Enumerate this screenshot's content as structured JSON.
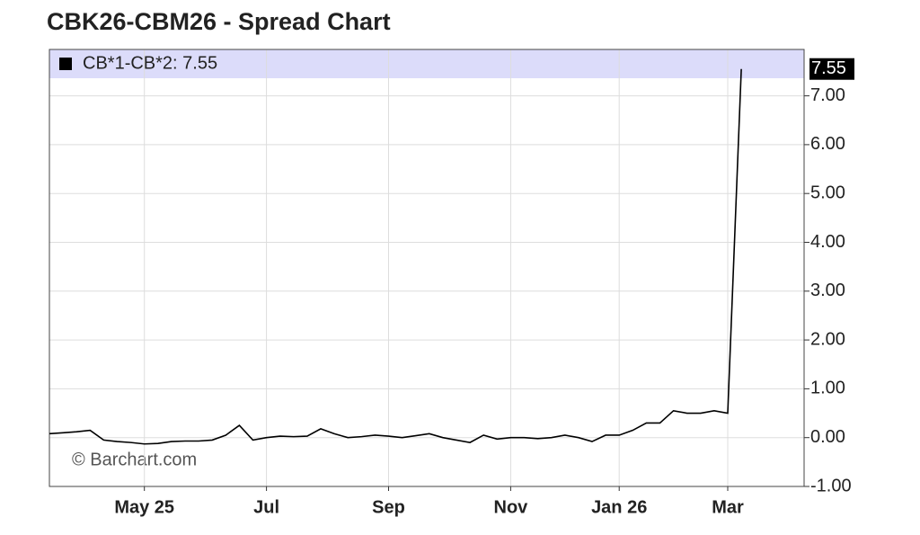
{
  "chart_data": {
    "type": "line",
    "title": "CBK26-CBM26 - Spread Chart",
    "watermark": "© Barchart.com",
    "categories": [
      null,
      null,
      null,
      null,
      null,
      null,
      null,
      "May 25",
      null,
      null,
      null,
      null,
      null,
      null,
      null,
      null,
      "Jul",
      null,
      null,
      null,
      null,
      null,
      null,
      null,
      null,
      "Sep",
      null,
      null,
      null,
      null,
      null,
      null,
      null,
      null,
      "Nov",
      null,
      null,
      null,
      null,
      null,
      null,
      null,
      "Jan 26",
      null,
      null,
      null,
      null,
      null,
      null,
      null,
      "Mar",
      null
    ],
    "series": [
      {
        "name": "CB*1-CB*2: 7.55",
        "color": "#000000",
        "values": [
          0.08,
          0.1,
          0.12,
          0.15,
          -0.05,
          -0.08,
          -0.1,
          -0.13,
          -0.12,
          -0.08,
          -0.07,
          -0.07,
          -0.05,
          0.05,
          0.25,
          -0.05,
          0.0,
          0.03,
          0.02,
          0.03,
          0.18,
          0.08,
          0.0,
          0.02,
          0.05,
          0.03,
          0.0,
          0.04,
          0.08,
          0.0,
          -0.05,
          -0.1,
          0.05,
          -0.03,
          0.0,
          0.0,
          -0.02,
          0.0,
          0.05,
          0.0,
          -0.08,
          0.05,
          0.05,
          0.15,
          0.3,
          0.3,
          0.55,
          0.5,
          0.5,
          0.55,
          0.5,
          7.55
        ]
      }
    ],
    "ylim": [
      -1,
      7.95
    ],
    "yticks": [
      {
        "value": -1,
        "label": "-1.00"
      },
      {
        "value": 0,
        "label": "0.00"
      },
      {
        "value": 1,
        "label": "1.00"
      },
      {
        "value": 2,
        "label": "2.00"
      },
      {
        "value": 3,
        "label": "3.00"
      },
      {
        "value": 4,
        "label": "4.00"
      },
      {
        "value": 5,
        "label": "5.00"
      },
      {
        "value": 6,
        "label": "6.00"
      },
      {
        "value": 7,
        "label": "7.00"
      }
    ],
    "grid": true
  }
}
